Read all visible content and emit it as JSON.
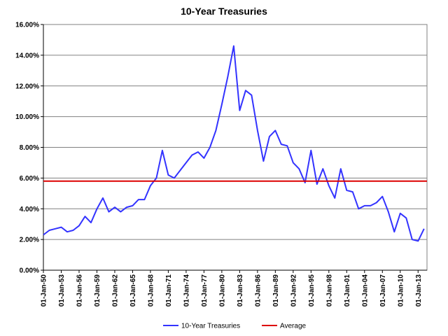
{
  "chart_data": {
    "type": "line",
    "title": "10-Year Treasuries",
    "xlabel": "",
    "ylabel": "",
    "ylim": [
      0,
      16
    ],
    "y_ticks": [
      "0.00%",
      "2.00%",
      "4.00%",
      "6.00%",
      "8.00%",
      "10.00%",
      "12.00%",
      "14.00%",
      "16.00%"
    ],
    "x_range": [
      1950,
      2014.5
    ],
    "x_ticks": [
      {
        "year": 1950,
        "label": "01-Jan-50"
      },
      {
        "year": 1953,
        "label": "01-Jan-53"
      },
      {
        "year": 1956,
        "label": "01-Jan-56"
      },
      {
        "year": 1959,
        "label": "01-Jan-59"
      },
      {
        "year": 1962,
        "label": "01-Jan-62"
      },
      {
        "year": 1965,
        "label": "01-Jan-65"
      },
      {
        "year": 1968,
        "label": "01-Jan-68"
      },
      {
        "year": 1971,
        "label": "01-Jan-71"
      },
      {
        "year": 1974,
        "label": "01-Jan-74"
      },
      {
        "year": 1977,
        "label": "01-Jan-77"
      },
      {
        "year": 1980,
        "label": "01-Jan-80"
      },
      {
        "year": 1983,
        "label": "01-Jan-83"
      },
      {
        "year": 1986,
        "label": "01-Jan-86"
      },
      {
        "year": 1989,
        "label": "01-Jan-89"
      },
      {
        "year": 1992,
        "label": "01-Jan-92"
      },
      {
        "year": 1995,
        "label": "01-Jan-95"
      },
      {
        "year": 1998,
        "label": "01-Jan-98"
      },
      {
        "year": 2001,
        "label": "01-Jan-01"
      },
      {
        "year": 2004,
        "label": "01-Jan-04"
      },
      {
        "year": 2007,
        "label": "01-Jan-07"
      },
      {
        "year": 2010,
        "label": "01-Jan-10"
      },
      {
        "year": 2013,
        "label": "01-Jan-13"
      }
    ],
    "grid": "horizontal",
    "legend_position": "bottom",
    "series": [
      {
        "name": "10-Year Treasuries",
        "color": "#3333ff",
        "x": [
          1950,
          1951,
          1952,
          1953,
          1954,
          1955,
          1956,
          1957,
          1958,
          1959,
          1960,
          1961,
          1962,
          1963,
          1964,
          1965,
          1966,
          1967,
          1968,
          1969,
          1970,
          1971,
          1972,
          1973,
          1974,
          1975,
          1976,
          1977,
          1978,
          1979,
          1980,
          1981,
          1982,
          1983,
          1984,
          1985,
          1986,
          1987,
          1988,
          1989,
          1990,
          1991,
          1992,
          1993,
          1994,
          1995,
          1996,
          1997,
          1998,
          1999,
          2000,
          2001,
          2002,
          2003,
          2004,
          2005,
          2006,
          2007,
          2008,
          2009,
          2010,
          2011,
          2012,
          2013,
          2014
        ],
        "values": [
          2.3,
          2.6,
          2.7,
          2.8,
          2.5,
          2.6,
          2.9,
          3.5,
          3.1,
          4.0,
          4.7,
          3.8,
          4.1,
          3.8,
          4.1,
          4.2,
          4.6,
          4.6,
          5.5,
          6.0,
          7.8,
          6.2,
          6.0,
          6.5,
          7.0,
          7.5,
          7.7,
          7.3,
          8.0,
          9.1,
          10.8,
          12.6,
          14.6,
          10.4,
          11.7,
          11.4,
          9.1,
          7.1,
          8.7,
          9.1,
          8.2,
          8.1,
          7.0,
          6.6,
          5.7,
          7.8,
          5.6,
          6.6,
          5.5,
          4.7,
          6.6,
          5.2,
          5.1,
          4.0,
          4.2,
          4.2,
          4.4,
          4.8,
          3.8,
          2.5,
          3.7,
          3.4,
          2.0,
          1.9,
          2.7
        ]
      },
      {
        "name": "Average",
        "color": "#dd0000",
        "x": [
          1950,
          2014.5
        ],
        "values": [
          5.8,
          5.8
        ]
      }
    ]
  }
}
